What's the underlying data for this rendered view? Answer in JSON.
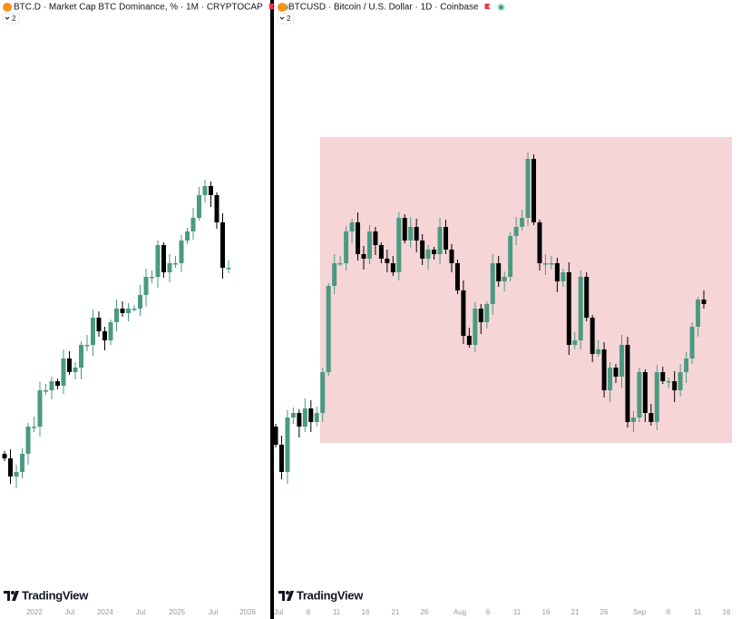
{
  "panels": [
    {
      "header": {
        "title": "BTC.D · Market Cap BTC Dominance, % · 1M · CRYPTOCAP",
        "badge": "2"
      },
      "logo": "TradingView",
      "x_axis_labels": [
        "2022",
        "Jul",
        "2024",
        "Jul",
        "2025",
        "Jul",
        "2026"
      ]
    },
    {
      "header": {
        "title": "BTCUSD · Bitcoin / U.S. Dollar · 1D · Coinbase",
        "badge": "2"
      },
      "logo": "TradingView",
      "x_axis_labels": [
        "Jul",
        "6",
        "11",
        "16",
        "21",
        "26",
        "Aug",
        "6",
        "11",
        "16",
        "21",
        "26",
        "Sep",
        "6",
        "11",
        "16"
      ]
    }
  ]
}
